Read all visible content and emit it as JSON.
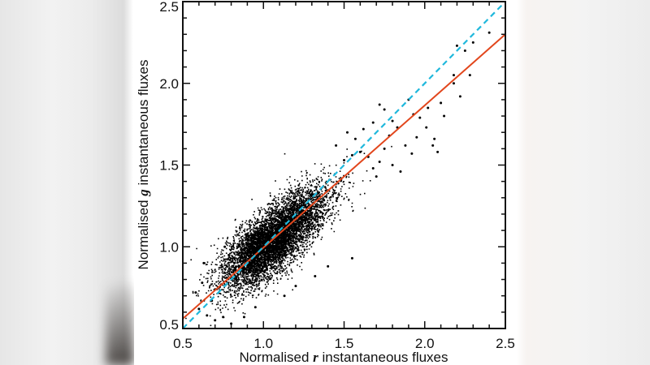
{
  "chart_data": {
    "type": "scatter",
    "title": "",
    "xlabel": "Normalised r instantaneous fluxes",
    "ylabel": "Normalised g instantaneous fluxes",
    "xlabel_parts": {
      "prefix": "Normalised ",
      "italic": "r",
      "suffix": " instantaneous fluxes"
    },
    "ylabel_parts": {
      "prefix": "Normalised ",
      "italic": "g",
      "suffix": " instantaneous fluxes"
    },
    "xlim": [
      0.5,
      2.5
    ],
    "ylim": [
      0.5,
      2.5
    ],
    "x_ticks": [
      "0.5",
      "1.0",
      "1.5",
      "2.0",
      "2.5"
    ],
    "y_ticks": [
      "0.5",
      "1.0",
      "1.5",
      "2.0",
      "2.5"
    ],
    "minor_tick_step": 0.1,
    "grid": false,
    "legend": null,
    "series": [
      {
        "name": "instantaneous flux pairs",
        "kind": "scatter",
        "color": "#000000",
        "dense_cloud": {
          "center": [
            1.05,
            1.04
          ],
          "x_range": [
            0.6,
            1.7
          ],
          "spread_along": 0.19,
          "spread_perpendicular": 0.075,
          "approx_points": 9000
        },
        "outliers": [
          [
            0.62,
            0.78
          ],
          [
            0.58,
            0.72
          ],
          [
            0.6,
            0.62
          ],
          [
            0.65,
            0.58
          ],
          [
            0.7,
            0.55
          ],
          [
            0.75,
            0.57
          ],
          [
            0.8,
            0.53
          ],
          [
            0.68,
            0.67
          ],
          [
            0.63,
            0.9
          ],
          [
            0.76,
            1.0
          ],
          [
            0.88,
            0.57
          ],
          [
            0.95,
            0.63
          ],
          [
            1.13,
            0.7
          ],
          [
            1.2,
            0.76
          ],
          [
            1.32,
            0.82
          ],
          [
            1.4,
            0.88
          ],
          [
            1.55,
            0.93
          ],
          [
            1.5,
            1.53
          ],
          [
            1.55,
            1.56
          ],
          [
            1.6,
            1.58
          ],
          [
            1.65,
            1.55
          ],
          [
            1.68,
            1.48
          ],
          [
            1.7,
            1.43
          ],
          [
            1.72,
            1.52
          ],
          [
            1.75,
            1.6
          ],
          [
            1.8,
            1.5
          ],
          [
            1.85,
            1.46
          ],
          [
            1.78,
            1.68
          ],
          [
            1.83,
            1.73
          ],
          [
            1.88,
            1.62
          ],
          [
            1.92,
            1.57
          ],
          [
            1.95,
            1.67
          ],
          [
            1.97,
            1.79
          ],
          [
            2.01,
            1.73
          ],
          [
            2.05,
            1.62
          ],
          [
            1.75,
            1.84
          ],
          [
            1.8,
            1.77
          ],
          [
            1.9,
            1.9
          ],
          [
            1.93,
            1.81
          ],
          [
            2.02,
            1.85
          ],
          [
            2.06,
            1.66
          ],
          [
            2.08,
            1.58
          ],
          [
            2.1,
            1.88
          ],
          [
            2.12,
            1.8
          ],
          [
            2.18,
            2.0
          ],
          [
            2.2,
            2.23
          ],
          [
            2.25,
            2.2
          ],
          [
            2.28,
            2.05
          ],
          [
            2.3,
            2.25
          ],
          [
            2.18,
            2.05
          ],
          [
            2.22,
            1.92
          ],
          [
            2.4,
            2.31
          ],
          [
            1.62,
            1.72
          ],
          [
            1.57,
            1.66
          ],
          [
            1.45,
            1.62
          ],
          [
            1.52,
            1.7
          ],
          [
            1.68,
            1.76
          ],
          [
            1.72,
            1.87
          ]
        ]
      },
      {
        "name": "linear fit",
        "kind": "line",
        "color": "#e2461c",
        "style": "solid",
        "x": [
          0.5,
          2.5
        ],
        "y": [
          0.56,
          2.3
        ]
      },
      {
        "name": "one-to-one line",
        "kind": "line",
        "color": "#1fb8dc",
        "style": "dashed",
        "x": [
          0.5,
          2.5
        ],
        "y": [
          0.5,
          2.5
        ]
      }
    ]
  }
}
